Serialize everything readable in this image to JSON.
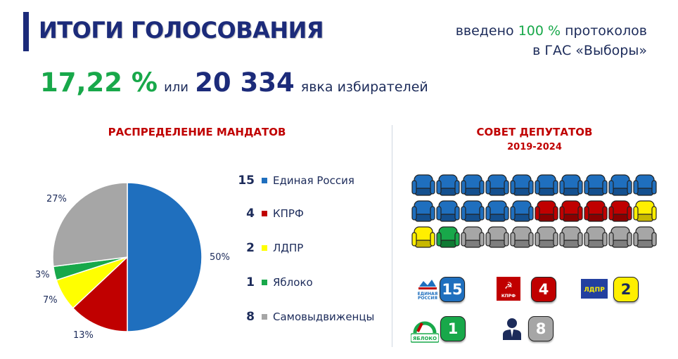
{
  "header": {
    "title": "ИТОГИ ГОЛОСОВАНИЯ",
    "protocols_prefix": "введено",
    "protocols_pct": "100 %",
    "protocols_suffix": "протоколов",
    "protocols_line2": "в ГАС «Выборы»"
  },
  "turnout": {
    "percent": "17,22 %",
    "or": "или",
    "count": "20 334",
    "label": "явка избирателей"
  },
  "mandates": {
    "title": "РАСПРЕДЕЛЕНИЕ МАНДАТОВ",
    "legend": [
      {
        "count": "15",
        "name": "Единая Россия",
        "color": "#1f6fbe"
      },
      {
        "count": "4",
        "name": "КПРФ",
        "color": "#c00000"
      },
      {
        "count": "2",
        "name": "ЛДПР",
        "color": "#ffff00"
      },
      {
        "count": "1",
        "name": "Яблоко",
        "color": "#18a84a"
      },
      {
        "count": "8",
        "name": "Самовыдвиженцы",
        "color": "#a6a6a6"
      }
    ]
  },
  "chart_data": {
    "type": "pie",
    "categories": [
      "Единая Россия",
      "КПРФ",
      "ЛДПР",
      "Яблоко",
      "Самовыдвиженцы"
    ],
    "values": [
      50,
      13,
      7,
      3,
      27
    ],
    "labels": [
      "50%",
      "13%",
      "7%",
      "3%",
      "27%"
    ],
    "colors": [
      "#1f6fbe",
      "#c00000",
      "#ffff00",
      "#18a84a",
      "#a6a6a6"
    ]
  },
  "council": {
    "title": "СОВЕТ ДЕПУТАТОВ",
    "years": "2019-2024",
    "seat_colors": {
      "er": "#1f6fbe",
      "kprf": "#c00000",
      "ldpr": "#ffef00",
      "yabloko": "#18a84a",
      "self": "#a6a6a6"
    },
    "rows": [
      [
        "er",
        "er",
        "er",
        "er",
        "er",
        "er",
        "er",
        "er",
        "er",
        "er"
      ],
      [
        "er",
        "er",
        "er",
        "er",
        "er",
        "kprf",
        "kprf",
        "kprf",
        "kprf",
        "ldpr"
      ],
      [
        "ldpr",
        "yabloko",
        "self",
        "self",
        "self",
        "self",
        "self",
        "self",
        "self",
        "self"
      ]
    ],
    "parties": [
      {
        "logo_text": "ЕДИНАЯ РОССИЯ",
        "count": "15",
        "color": "#1f6fbe"
      },
      {
        "logo_text": "КПРФ",
        "count": "4",
        "color": "#c00000"
      },
      {
        "logo_text": "ЛДПР",
        "count": "2",
        "color": "#ffef00"
      },
      {
        "logo_text": "ЯБЛОКО",
        "count": "1",
        "color": "#18a84a"
      },
      {
        "logo_text": "",
        "count": "8",
        "color": "#a6a6a6"
      }
    ]
  }
}
